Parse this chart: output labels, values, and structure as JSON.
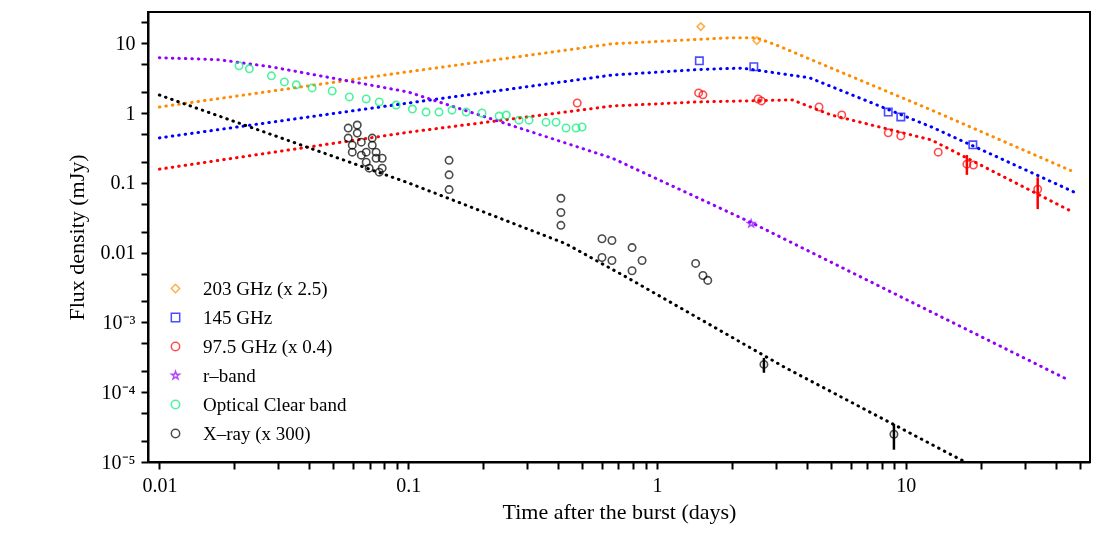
{
  "chart_data": {
    "type": "scatter",
    "xlabel": "Time after the burst (days)",
    "ylabel": "Flux density (mJy)",
    "log": "xy",
    "grid": false,
    "legend": "bottom left",
    "xlim": [
      0.009,
      55
    ],
    "ylim": [
      1e-05,
      28
    ],
    "xticks": [
      0.01,
      {
        "value": 0.02,
        "label": null
      },
      {
        "value": 0.03,
        "label": null
      },
      {
        "value": 0.04,
        "label": null
      },
      {
        "value": 0.05,
        "label": null
      },
      {
        "value": 0.06,
        "label": null
      },
      {
        "value": 0.07,
        "label": null
      },
      {
        "value": 0.08,
        "label": null
      },
      {
        "value": 0.09,
        "label": null
      },
      0.1,
      {
        "value": 0.2,
        "label": null
      },
      {
        "value": 0.3,
        "label": null
      },
      {
        "value": 0.4,
        "label": null
      },
      {
        "value": 0.5,
        "label": null
      },
      {
        "value": 0.6,
        "label": null
      },
      {
        "value": 0.7,
        "label": null
      },
      {
        "value": 0.8,
        "label": null
      },
      {
        "value": 0.9,
        "label": null
      },
      1,
      {
        "value": 2,
        "label": null
      },
      {
        "value": 3,
        "label": null
      },
      {
        "value": 4,
        "label": null
      },
      {
        "value": 5,
        "label": null
      },
      {
        "value": 6,
        "label": null
      },
      {
        "value": 7,
        "label": null
      },
      {
        "value": 8,
        "label": null
      },
      {
        "value": 9,
        "label": null
      },
      10,
      {
        "value": 20,
        "label": null
      },
      {
        "value": 30,
        "label": null
      },
      {
        "value": 40,
        "label": null
      },
      {
        "value": 50,
        "label": null
      }
    ],
    "yticks": [
      {
        "value": 1e-05,
        "label": "10⁻⁵"
      },
      {
        "value": 0.0001,
        "label": "10⁻⁴"
      },
      {
        "value": 0.001,
        "label": "10⁻³"
      },
      0.01,
      0.1,
      1,
      10,
      {
        "value": 2e-05,
        "label": null
      },
      {
        "value": 5e-05,
        "label": null
      },
      {
        "value": 0.0002,
        "label": null
      },
      {
        "value": 0.0005,
        "label": null
      },
      {
        "value": 0.002,
        "label": null
      },
      {
        "value": 0.005,
        "label": null
      },
      {
        "value": 0.02,
        "label": null
      },
      {
        "value": 0.05,
        "label": null
      },
      {
        "value": 0.2,
        "label": null
      },
      {
        "value": 0.5,
        "label": null
      },
      {
        "value": 2,
        "label": null
      },
      {
        "value": 5,
        "label": null
      },
      {
        "value": 20,
        "label": null
      }
    ],
    "series": [
      {
        "name": "203 GHz (x 2.5)",
        "color": "#ff8c00",
        "marker": "diamond",
        "x": [
          1.5,
          2.52
        ],
        "values": [
          17.3,
          10.9
        ]
      },
      {
        "name": "145 GHz",
        "color": "#0000ff",
        "marker": "square",
        "x": [
          1.48,
          2.45,
          8.5,
          9.55,
          18.6
        ],
        "values": [
          5.6,
          4.6,
          1.03,
          0.88,
          0.35
        ]
      },
      {
        "name": "97.5 GHz (x 0.4)",
        "color": "#ff0000",
        "marker": "circle",
        "x": [
          0.478,
          1.47,
          1.53,
          2.55,
          2.63,
          4.48,
          5.53,
          8.5,
          9.55,
          13.5,
          17.6,
          18.7,
          33.9
        ],
        "values": [
          1.39,
          1.94,
          1.82,
          1.59,
          1.49,
          1.22,
          0.94,
          0.52,
          0.47,
          0.275,
          0.185,
          0.18,
          0.081
        ],
        "errors": [
          null,
          null,
          null,
          null,
          null,
          null,
          null,
          null,
          null,
          null,
          [
            0.13,
            0.25
          ],
          null,
          [
            0.042,
            0.12
          ]
        ]
      },
      {
        "name": "r–band",
        "color": "#8f00ff",
        "marker": "star",
        "x": [
          2.39
        ],
        "values": [
          0.026
        ]
      },
      {
        "name": "Optical Clear band",
        "color": "#00ee77",
        "marker": "circle",
        "x": [
          0.0209,
          0.023,
          0.0282,
          0.0318,
          0.0355,
          0.0411,
          0.0495,
          0.058,
          0.0678,
          0.0765,
          0.0895,
          0.104,
          0.118,
          0.133,
          0.15,
          0.171,
          0.198,
          0.232,
          0.248,
          0.279,
          0.306,
          0.358,
          0.393,
          0.431,
          0.473,
          0.5
        ],
        "values": [
          4.75,
          4.3,
          3.41,
          2.79,
          2.53,
          2.29,
          2.07,
          1.7,
          1.59,
          1.44,
          1.3,
          1.14,
          1.03,
          1.03,
          1.1,
          1.03,
          1.0,
          0.905,
          0.935,
          0.79,
          0.79,
          0.74,
          0.74,
          0.61,
          0.61,
          0.63
        ]
      },
      {
        "name": "X–ray (x 300)",
        "color": "#000000",
        "marker": "circle",
        "x": [
          0.0574,
          0.0574,
          0.0596,
          0.0596,
          0.0624,
          0.0624,
          0.0648,
          0.0648,
          0.0678,
          0.0678,
          0.0697,
          0.0717,
          0.0717,
          0.0743,
          0.0743,
          0.0765,
          0.0786,
          0.0786,
          0.146,
          0.146,
          0.146,
          0.411,
          0.411,
          0.411,
          0.601,
          0.601,
          0.659,
          0.659,
          0.794,
          0.794,
          0.871,
          1.43,
          1.53,
          1.6,
          2.69,
          8.96
        ],
        "values": [
          0.608,
          0.437,
          0.346,
          0.275,
          0.672,
          0.515,
          0.382,
          0.249,
          0.197,
          0.275,
          0.162,
          0.437,
          0.346,
          0.225,
          0.275,
          0.142,
          0.225,
          0.162,
          0.21,
          0.13,
          0.08,
          0.06,
          0.0376,
          0.0246,
          0.0085,
          0.0158,
          0.0149,
          0.0077,
          0.0118,
          0.0055,
          0.0077,
          0.007,
          0.0047,
          0.004,
          0.00025,
          2.5e-05
        ],
        "errors": [
          null,
          null,
          null,
          null,
          null,
          null,
          null,
          null,
          null,
          null,
          null,
          null,
          null,
          null,
          null,
          null,
          null,
          null,
          null,
          null,
          null,
          null,
          null,
          null,
          null,
          null,
          null,
          null,
          null,
          null,
          null,
          null,
          null,
          null,
          [
            0.00019,
            0.00031
          ],
          [
            1.5e-05,
            3.5e-05
          ]
        ]
      },
      {
        "type": "line",
        "color": "#ff8c00",
        "marker": "none",
        "line_style": "dotted",
        "x": [
          0.01,
          0.1,
          0.66,
          2.0,
          2.5,
          3.0,
          12.7,
          46
        ],
        "values": [
          1.22,
          3.9,
          9.8,
          12,
          12,
          9.5,
          1.1,
          0.15
        ]
      },
      {
        "type": "line",
        "color": "#0000ff",
        "marker": "none",
        "line_style": "dotted",
        "x": [
          0.01,
          0.1,
          0.66,
          1.48,
          2.2,
          4.1,
          12.7,
          49
        ],
        "values": [
          0.44,
          1.39,
          3.5,
          4.2,
          4.4,
          3.2,
          0.63,
          0.07
        ]
      },
      {
        "type": "line",
        "color": "#ff0000",
        "marker": "none",
        "line_style": "dotted",
        "x": [
          0.01,
          0.1,
          0.66,
          1.45,
          3.5,
          5.0,
          12.7,
          47
        ],
        "values": [
          0.157,
          0.53,
          1.26,
          1.44,
          1.54,
          0.94,
          0.41,
          0.038
        ]
      },
      {
        "type": "line",
        "color": "#8f00ff",
        "marker": "none",
        "line_style": "dotted",
        "x": [
          0.01,
          0.0174,
          0.028,
          0.1,
          0.66,
          2.39,
          45
        ],
        "values": [
          6.2,
          5.8,
          4.6,
          2.0,
          0.226,
          0.027,
          0.00015
        ]
      },
      {
        "type": "line",
        "color": "#000000",
        "marker": "none",
        "line_style": "dotted",
        "x": [
          0.01,
          0.1,
          0.43,
          0.75,
          3.24,
          16.0,
          17.4
        ],
        "values": [
          1.81,
          0.1,
          0.0134,
          0.0045,
          0.00023,
          1.16e-05,
          1e-05
        ]
      }
    ]
  }
}
